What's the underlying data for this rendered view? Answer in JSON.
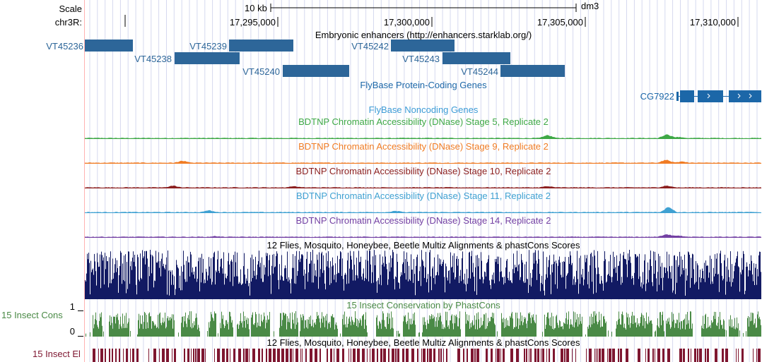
{
  "colors": {
    "enhancer": "#2d6699",
    "flybase": "#1c67a8",
    "noncoding": "#3c9bd6",
    "stage5": "#3ea846",
    "stage9": "#f07c24",
    "stage10": "#8b1e1e",
    "stage11": "#3fa1d2",
    "stage14": "#7340a3",
    "multiz": "#121a63",
    "cons": "#4a8a46",
    "el": "#7e1630",
    "gridline": "#d6d9ef",
    "leftline": "#ffb2b2"
  },
  "ruler": {
    "scale_label": "Scale",
    "chrom_label": "chr3R:",
    "scale_bar_text": "10 kb",
    "assembly": "dm3",
    "ticks": [
      "17,295,000",
      "17,300,000",
      "17,305,000",
      "17,310,000"
    ]
  },
  "tracks": {
    "enhancers": {
      "title": "Embryonic enhancers (http://enhancers.starklab.org/)",
      "items": [
        "VT45236",
        "VT45238",
        "VT45239",
        "VT45240",
        "VT45242",
        "VT45243",
        "VT45244"
      ]
    },
    "flybase_coding": {
      "title": "FlyBase Protein-Coding Genes",
      "gene": "CG7922"
    },
    "flybase_noncoding": {
      "title": "FlyBase Noncoding Genes"
    },
    "dnase": [
      {
        "title": "BDTNP Chromatin Accessibility (DNase) Stage 5, Replicate 2",
        "color": "#3ea846"
      },
      {
        "title": "BDTNP Chromatin Accessibility (DNase) Stage 9, Replicate 2",
        "color": "#f07c24"
      },
      {
        "title": "BDTNP Chromatin Accessibility (DNase) Stage 10, Replicate 2",
        "color": "#8b1e1e"
      },
      {
        "title": "BDTNP Chromatin Accessibility (DNase) Stage 11, Replicate 2",
        "color": "#3fa1d2"
      },
      {
        "title": "BDTNP Chromatin Accessibility (DNase) Stage 14, Replicate 2",
        "color": "#7340a3"
      }
    ],
    "multiz": {
      "title": "12 Flies, Mosquito, Honeybee, Beetle Multiz Alignments & phastCons Scores"
    },
    "cons": {
      "title": "15 Insect Conservation by PhastCons",
      "side_label": "15 Insect Cons",
      "axis_top": "1",
      "axis_bottom": "0"
    },
    "elements": {
      "title": "12 Flies, Mosquito, Honeybee, Beetle Multiz Alignments & phastCons Scores",
      "side_label": "15 Insect El"
    }
  }
}
